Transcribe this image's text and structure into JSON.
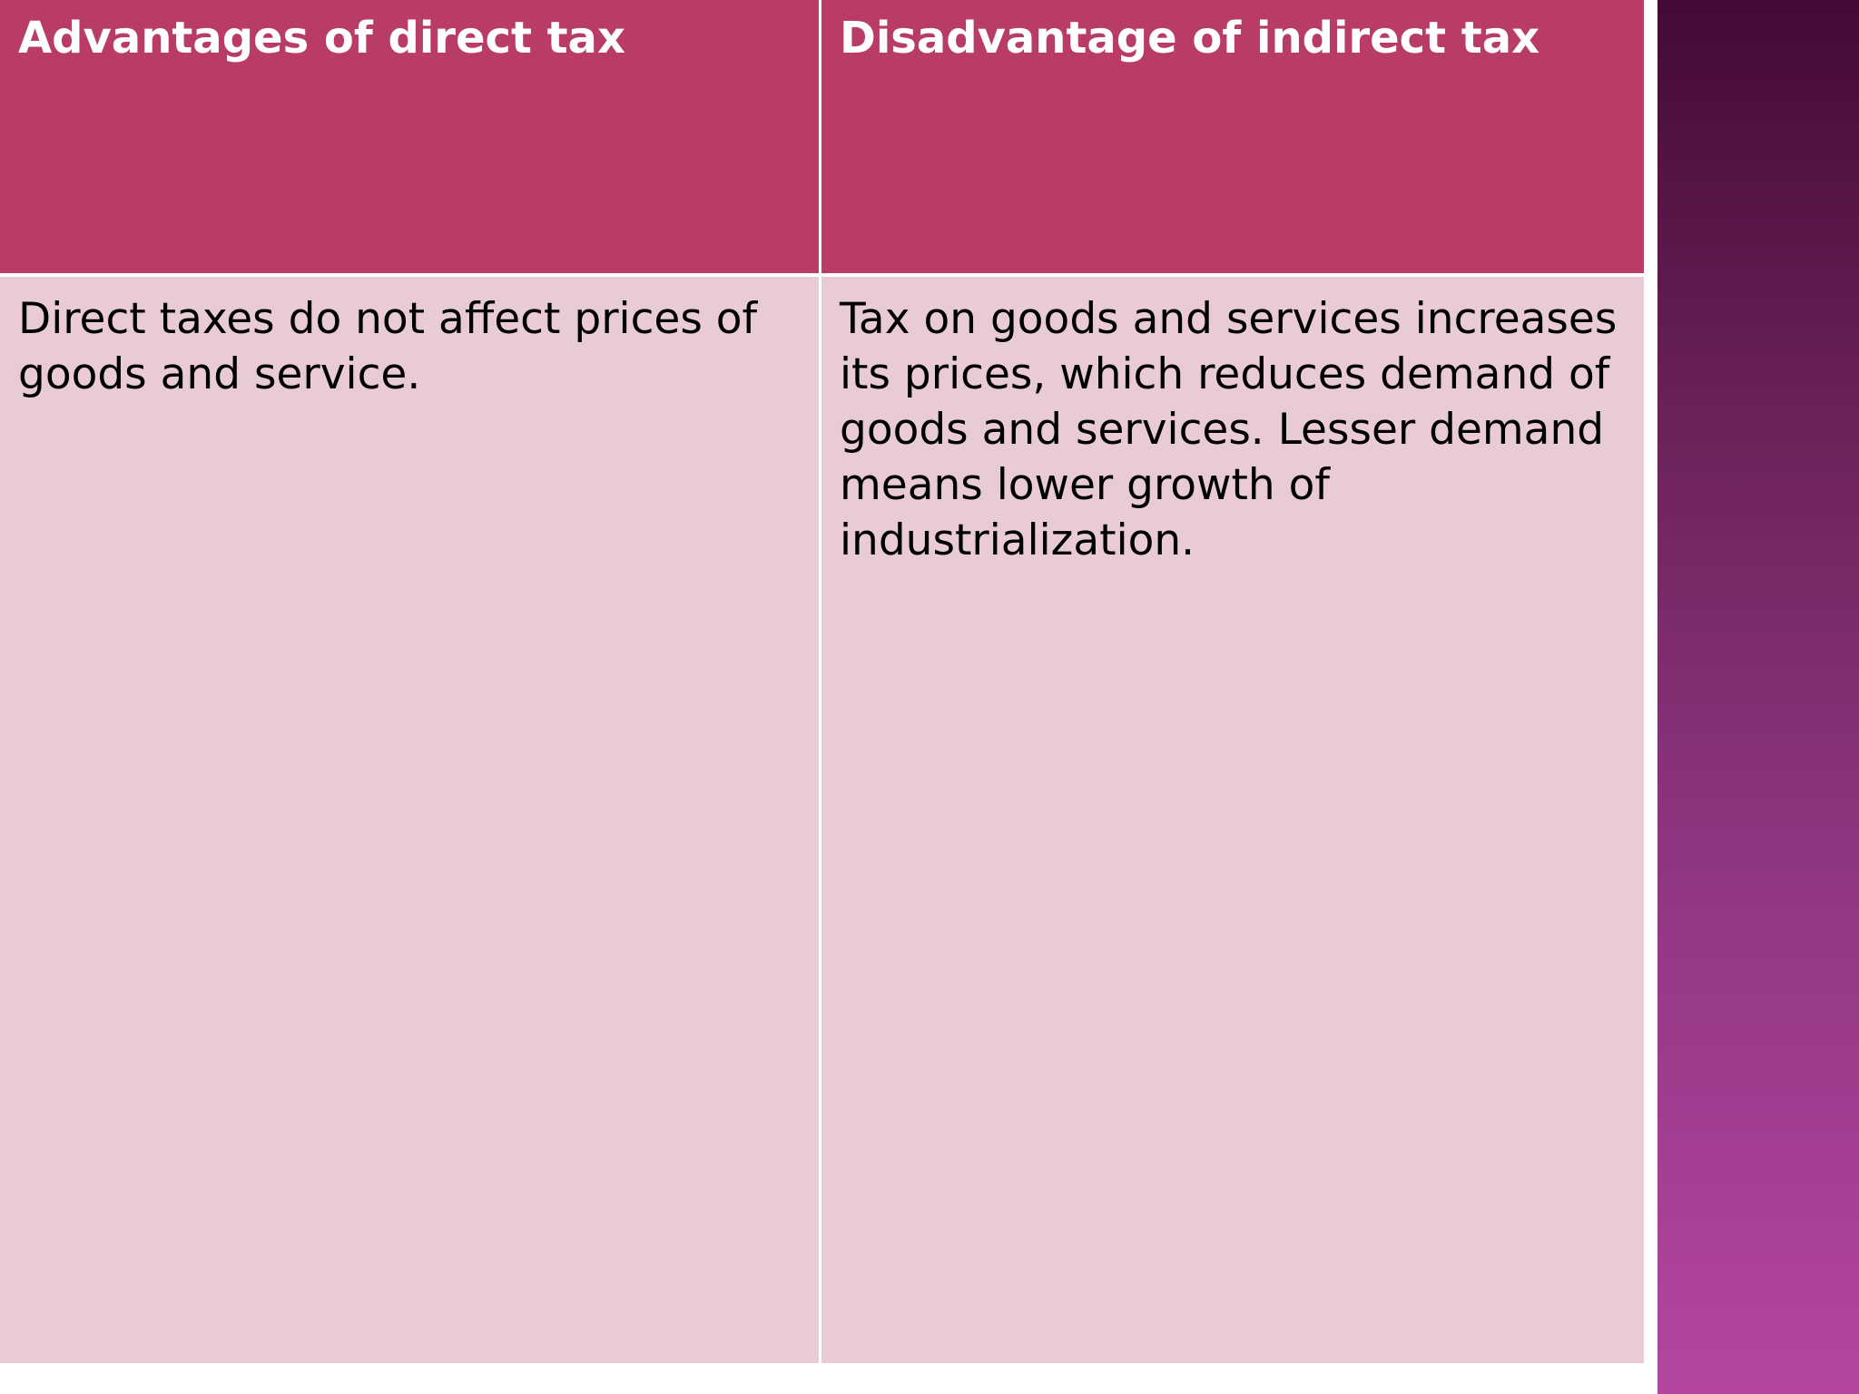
{
  "table": {
    "headers": [
      "Advantages of direct tax",
      "Disadvantage of indirect tax"
    ],
    "rows": [
      [
        "Direct taxes do not affect prices of goods and service.",
        "Tax on goods and services increases its prices, which reduces demand of goods and services. Lesser demand means lower growth of industrialization."
      ]
    ]
  },
  "colors": {
    "header_bg": "#b83c66",
    "body_bg": "#e8cbd6",
    "band_top": "#440a35",
    "band_bottom": "#b446a0"
  }
}
